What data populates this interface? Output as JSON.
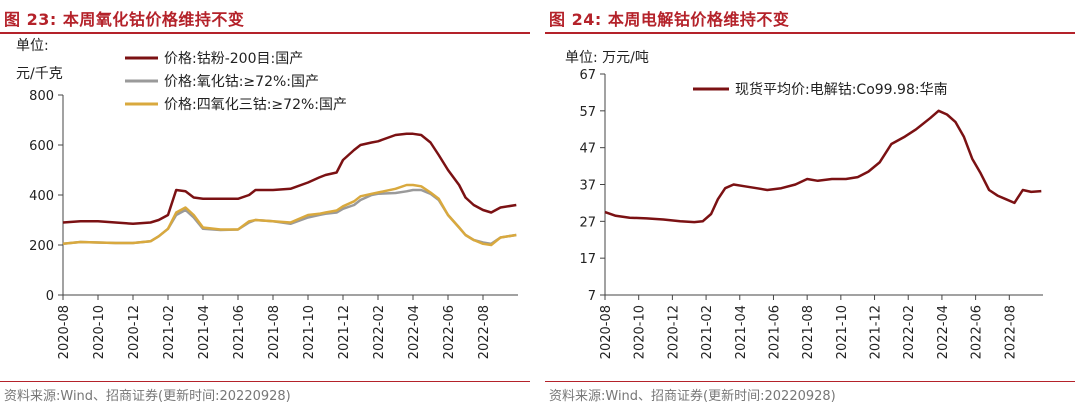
{
  "chart_data": [
    {
      "type": "line",
      "figure_label": "图 23:",
      "title": "本周氧化钴价格维持不变",
      "unit_line1": "单位:",
      "unit_line2": "元/千克",
      "ylim": [
        0,
        800
      ],
      "yticks": [
        "0",
        "200",
        "400",
        "600",
        "800"
      ],
      "xlim": [
        "2020-08",
        "2022-10"
      ],
      "xticks": [
        "2020-08",
        "2020-10",
        "2020-12",
        "2021-02",
        "2021-04",
        "2021-06",
        "2021-08",
        "2021-10",
        "2021-12",
        "2022-02",
        "2022-04",
        "2022-06",
        "2022-08"
      ],
      "x": [
        "2020-08-01",
        "2020-09-01",
        "2020-10-01",
        "2020-11-01",
        "2020-12-01",
        "2021-01-01",
        "2021-01-15",
        "2021-02-01",
        "2021-02-15",
        "2021-03-01",
        "2021-03-15",
        "2021-04-01",
        "2021-05-01",
        "2021-06-01",
        "2021-06-20",
        "2021-07-01",
        "2021-08-01",
        "2021-09-01",
        "2021-10-01",
        "2021-10-20",
        "2021-11-01",
        "2021-11-20",
        "2021-12-01",
        "2021-12-20",
        "2022-01-01",
        "2022-01-20",
        "2022-02-01",
        "2022-03-01",
        "2022-03-20",
        "2022-04-01",
        "2022-04-15",
        "2022-05-01",
        "2022-05-15",
        "2022-06-01",
        "2022-06-20",
        "2022-07-01",
        "2022-07-15",
        "2022-08-01",
        "2022-08-15",
        "2022-09-01",
        "2022-09-28"
      ],
      "series": [
        {
          "name": "价格:钴粉-200目:国产",
          "color": "#7b1113",
          "values": [
            290,
            295,
            295,
            290,
            285,
            290,
            300,
            320,
            420,
            415,
            390,
            385,
            385,
            385,
            400,
            420,
            420,
            425,
            450,
            470,
            480,
            490,
            540,
            580,
            600,
            610,
            615,
            640,
            645,
            645,
            640,
            610,
            560,
            500,
            440,
            390,
            360,
            340,
            330,
            350,
            360
          ]
        },
        {
          "name": "价格:氧化钴:≥72%:国产",
          "color": "#9a9a9a",
          "values": [
            205,
            212,
            210,
            208,
            208,
            215,
            235,
            265,
            320,
            340,
            310,
            265,
            260,
            262,
            290,
            300,
            295,
            285,
            310,
            320,
            325,
            330,
            345,
            360,
            380,
            400,
            405,
            408,
            415,
            420,
            420,
            405,
            380,
            320,
            270,
            240,
            220,
            210,
            205,
            230,
            240
          ]
        },
        {
          "name": "价格:四氧化三钴:≥72%:国产",
          "color": "#d9a93e",
          "values": [
            205,
            212,
            210,
            208,
            208,
            215,
            235,
            265,
            330,
            350,
            320,
            270,
            262,
            262,
            295,
            300,
            295,
            290,
            320,
            325,
            330,
            338,
            355,
            375,
            395,
            405,
            410,
            425,
            440,
            440,
            435,
            410,
            385,
            320,
            270,
            240,
            220,
            205,
            200,
            230,
            240
          ]
        }
      ],
      "source": "资料来源:Wind、招商证券(更新时间:20220928)"
    },
    {
      "type": "line",
      "figure_label": "图 24:",
      "title": "本周电解钴价格维持不变",
      "unit_line1": "单位: 万元/吨",
      "ylim": [
        7,
        67
      ],
      "yticks": [
        "7",
        "17",
        "27",
        "37",
        "47",
        "57",
        "67"
      ],
      "xlim": [
        "2020-08",
        "2022-10"
      ],
      "xticks": [
        "2020-08",
        "2020-10",
        "2020-12",
        "2021-02",
        "2021-04",
        "2021-06",
        "2021-08",
        "2021-10",
        "2021-12",
        "2022-02",
        "2022-04",
        "2022-06",
        "2022-08"
      ],
      "x": [
        "2020-08-01",
        "2020-08-20",
        "2020-09-15",
        "2020-10-15",
        "2020-11-15",
        "2020-12-15",
        "2021-01-10",
        "2021-01-25",
        "2021-02-10",
        "2021-02-22",
        "2021-03-05",
        "2021-03-20",
        "2021-04-10",
        "2021-05-01",
        "2021-05-20",
        "2021-06-15",
        "2021-07-10",
        "2021-08-01",
        "2021-08-20",
        "2021-09-15",
        "2021-10-10",
        "2021-11-01",
        "2021-11-20",
        "2021-12-10",
        "2022-01-01",
        "2022-01-25",
        "2022-02-15",
        "2022-03-10",
        "2022-03-25",
        "2022-04-10",
        "2022-04-25",
        "2022-05-10",
        "2022-05-25",
        "2022-06-10",
        "2022-06-25",
        "2022-07-10",
        "2022-07-25",
        "2022-08-10",
        "2022-08-25",
        "2022-09-10",
        "2022-09-28"
      ],
      "series": [
        {
          "name": "现货平均价:电解钴:Co99.98:华南",
          "color": "#7b1113",
          "values": [
            29.5,
            28.5,
            28,
            27.8,
            27.5,
            27,
            26.8,
            27,
            29,
            33,
            36,
            37,
            36.5,
            36,
            35.5,
            36,
            37,
            38.5,
            38,
            38.5,
            38.5,
            39,
            40.5,
            43,
            48,
            50,
            52,
            55,
            57,
            56,
            54,
            50,
            44,
            40,
            35.5,
            34,
            33,
            32,
            35.5,
            35,
            35.2
          ]
        }
      ],
      "source": "资料来源:Wind、招商证券(更新时间:20220928)"
    }
  ]
}
